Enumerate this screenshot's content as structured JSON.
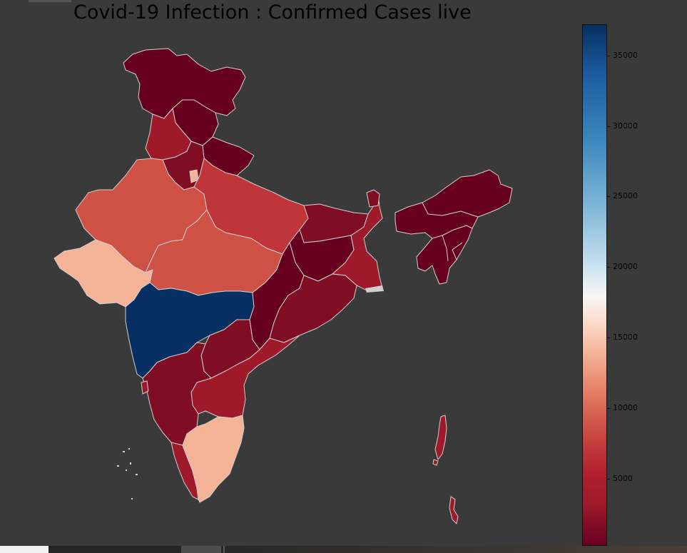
{
  "chart_data": {
    "type": "choropleth",
    "title": "Covid-19 Infection : Confirmed Cases live",
    "colorbar": {
      "colormap": "RdBu",
      "range": [
        0,
        37000
      ],
      "ticks": [
        "5000",
        "10000",
        "15000",
        "20000",
        "25000",
        "30000",
        "35000"
      ]
    },
    "regions": [
      {
        "id": "jammu-kashmir",
        "level": "low"
      },
      {
        "id": "ladakh",
        "level": "low"
      },
      {
        "id": "himachal-pradesh",
        "level": "low"
      },
      {
        "id": "punjab",
        "level": "low"
      },
      {
        "id": "uttarakhand",
        "level": "low"
      },
      {
        "id": "haryana",
        "level": "low"
      },
      {
        "id": "delhi",
        "level": "high"
      },
      {
        "id": "rajasthan",
        "level": "medium"
      },
      {
        "id": "uttar-pradesh",
        "level": "medium"
      },
      {
        "id": "gujarat",
        "level": "high"
      },
      {
        "id": "madhya-pradesh",
        "level": "medium"
      },
      {
        "id": "maharashtra",
        "level": "highest"
      },
      {
        "id": "bihar",
        "level": "low"
      },
      {
        "id": "jharkhand",
        "level": "low"
      },
      {
        "id": "west-bengal",
        "level": "low"
      },
      {
        "id": "odisha",
        "level": "low"
      },
      {
        "id": "chhattisgarh",
        "level": "low"
      },
      {
        "id": "telangana",
        "level": "low"
      },
      {
        "id": "andhra-pradesh",
        "level": "low"
      },
      {
        "id": "karnataka",
        "level": "low"
      },
      {
        "id": "goa",
        "level": "low"
      },
      {
        "id": "kerala",
        "level": "low"
      },
      {
        "id": "tamil-nadu",
        "level": "high"
      },
      {
        "id": "sikkim",
        "level": "low"
      },
      {
        "id": "north-east",
        "level": "low"
      },
      {
        "id": "andaman-nicobar",
        "level": "low"
      },
      {
        "id": "lakshadweep",
        "level": "low"
      }
    ]
  },
  "colors": {
    "background": "#3a3a3a",
    "border": "#d0d0d0",
    "darkest_red": "#67001f",
    "dark_red": "#7f0e24",
    "red": "#9e1a2b",
    "medium_red": "#c0353a",
    "light_red": "#cf5146",
    "peach": "#f4b397",
    "navy": "#053061"
  }
}
